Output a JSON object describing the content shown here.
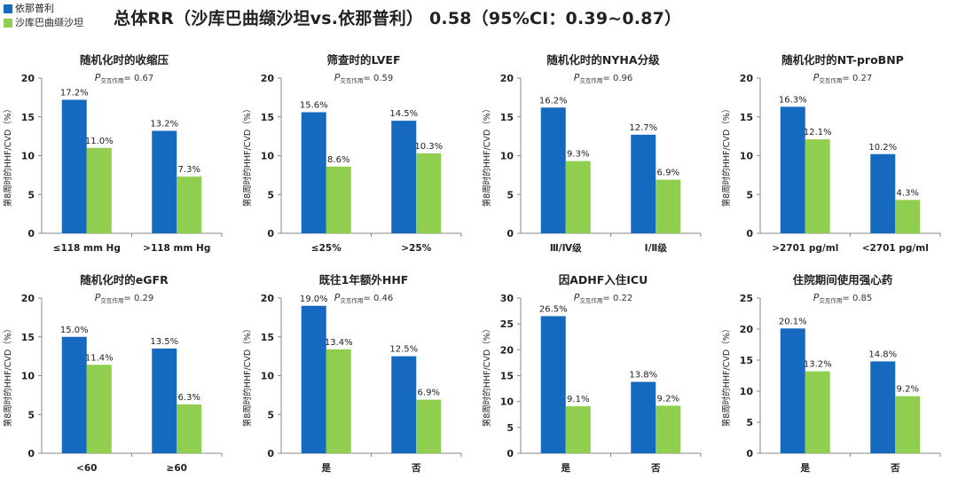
{
  "title": "总体RR（沙库巴曲缬沙坦vs.依那普利） 0.58（95%CI：0.39~0.87）",
  "legend": [
    {
      "name": "依那普利",
      "color": "#1569be"
    },
    {
      "name": "沙库巴曲缬沙坦",
      "color": "#8fce4f"
    }
  ],
  "ylabel": "第8周时的HHF/CVD（%）",
  "pvalue_prefix": "P",
  "pvalue_sub": "交互作用",
  "chart_data": [
    {
      "type": "bar",
      "title": "随机化时的收缩压",
      "p": "= 0.67",
      "ylim": [
        0,
        20
      ],
      "yticks": [
        0,
        5,
        10,
        15,
        20
      ],
      "categories": [
        "≤118 mm Hg",
        ">118 mm Hg"
      ],
      "series": [
        {
          "name": "依那普利",
          "values": [
            17.2,
            13.2
          ],
          "labels": [
            "17.2%",
            "13.2%"
          ]
        },
        {
          "name": "沙库巴曲缬沙坦",
          "values": [
            11.0,
            7.3
          ],
          "labels": [
            "11.0%",
            "7.3%"
          ]
        }
      ]
    },
    {
      "type": "bar",
      "title": "筛查时的LVEF",
      "p": "= 0.59",
      "ylim": [
        0,
        20
      ],
      "yticks": [
        0,
        5,
        10,
        15,
        20
      ],
      "categories": [
        "≤25%",
        ">25%"
      ],
      "series": [
        {
          "name": "依那普利",
          "values": [
            15.6,
            14.5
          ],
          "labels": [
            "15.6%",
            "14.5%"
          ]
        },
        {
          "name": "沙库巴曲缬沙坦",
          "values": [
            8.6,
            10.3
          ],
          "labels": [
            "8.6%",
            "10.3%"
          ]
        }
      ]
    },
    {
      "type": "bar",
      "title": "随机化时的NYHA分级",
      "p": "= 0.96",
      "ylim": [
        0,
        20
      ],
      "yticks": [
        0,
        5,
        10,
        15,
        20
      ],
      "categories": [
        "Ⅲ/Ⅳ级",
        "Ⅰ/Ⅱ级"
      ],
      "series": [
        {
          "name": "依那普利",
          "values": [
            16.2,
            12.7
          ],
          "labels": [
            "16.2%",
            "12.7%"
          ]
        },
        {
          "name": "沙库巴曲缬沙坦",
          "values": [
            9.3,
            6.9
          ],
          "labels": [
            "9.3%",
            "6.9%"
          ]
        }
      ]
    },
    {
      "type": "bar",
      "title": "随机化时的NT-proBNP",
      "p": "= 0.27",
      "ylim": [
        0,
        20
      ],
      "yticks": [
        0,
        5,
        10,
        15,
        20
      ],
      "categories": [
        ">2701 pg/ml",
        "<2701 pg/ml"
      ],
      "series": [
        {
          "name": "依那普利",
          "values": [
            16.3,
            10.2
          ],
          "labels": [
            "16.3%",
            "10.2%"
          ]
        },
        {
          "name": "沙库巴曲缬沙坦",
          "values": [
            12.1,
            4.3
          ],
          "labels": [
            "12.1%",
            "4.3%"
          ]
        }
      ]
    },
    {
      "type": "bar",
      "title": "随机化时的eGFR",
      "p": "= 0.29",
      "ylim": [
        0,
        20
      ],
      "yticks": [
        0,
        5,
        10,
        15,
        20
      ],
      "categories": [
        "<60",
        "≥60"
      ],
      "series": [
        {
          "name": "依那普利",
          "values": [
            15.0,
            13.5
          ],
          "labels": [
            "15.0%",
            "13.5%"
          ]
        },
        {
          "name": "沙库巴曲缬沙坦",
          "values": [
            11.4,
            6.3
          ],
          "labels": [
            "11.4%",
            "6.3%"
          ]
        }
      ]
    },
    {
      "type": "bar",
      "title": "既往1年额外HHF",
      "p": "= 0.46",
      "ylim": [
        0,
        20
      ],
      "yticks": [
        0,
        5,
        10,
        15,
        20
      ],
      "categories": [
        "是",
        "否"
      ],
      "series": [
        {
          "name": "依那普利",
          "values": [
            19.0,
            12.5
          ],
          "labels": [
            "19.0%",
            "12.5%"
          ]
        },
        {
          "name": "沙库巴曲缬沙坦",
          "values": [
            13.4,
            6.9
          ],
          "labels": [
            "13.4%",
            "6.9%"
          ]
        }
      ]
    },
    {
      "type": "bar",
      "title": "因ADHF入住ICU",
      "p": "= 0.22",
      "ylim": [
        0,
        30
      ],
      "yticks": [
        0,
        5,
        10,
        15,
        20,
        25,
        30
      ],
      "categories": [
        "是",
        "否"
      ],
      "series": [
        {
          "name": "依那普利",
          "values": [
            26.5,
            13.8
          ],
          "labels": [
            "26.5%",
            "13.8%"
          ]
        },
        {
          "name": "沙库巴曲缬沙坦",
          "values": [
            9.1,
            9.2
          ],
          "labels": [
            "9.1%",
            "9.2%"
          ]
        }
      ]
    },
    {
      "type": "bar",
      "title": "住院期间使用强心药",
      "p": "= 0.85",
      "ylim": [
        0,
        25
      ],
      "yticks": [
        0,
        5,
        10,
        15,
        20,
        25
      ],
      "categories": [
        "是",
        "否"
      ],
      "series": [
        {
          "name": "依那普利",
          "values": [
            20.1,
            14.8
          ],
          "labels": [
            "20.1%",
            "14.8%"
          ]
        },
        {
          "name": "沙库巴曲缬沙坦",
          "values": [
            13.2,
            9.2
          ],
          "labels": [
            "13.2%",
            "9.2%"
          ]
        }
      ]
    }
  ]
}
